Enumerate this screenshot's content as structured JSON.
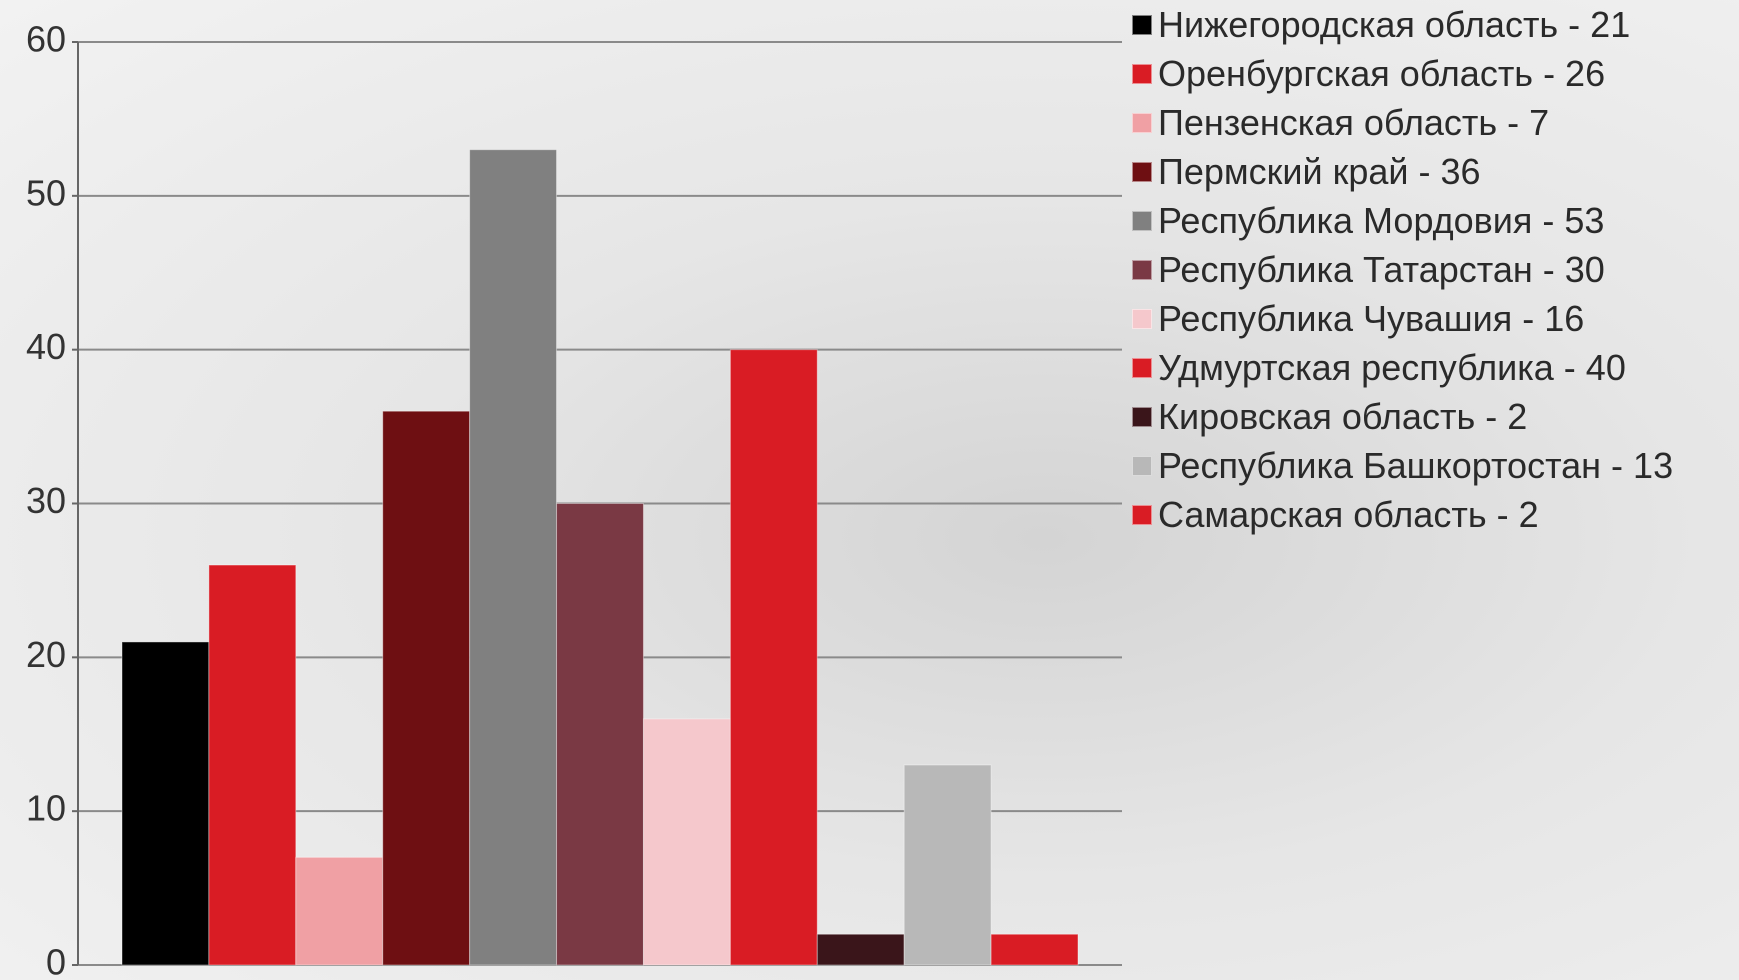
{
  "chart_data": {
    "type": "bar",
    "categories": [
      null
    ],
    "series": [
      {
        "name": "Нижегородская область - 21",
        "color": "#000000",
        "values": [
          21
        ]
      },
      {
        "name": "Оренбургская область - 26",
        "color": "#d91c24",
        "values": [
          26
        ]
      },
      {
        "name": "Пензенская область - 7",
        "color": "#f0a0a4",
        "values": [
          7
        ]
      },
      {
        "name": "Пермский край - 36",
        "color": "#6e0f12",
        "values": [
          36
        ]
      },
      {
        "name": "Республика Мордовия - 53",
        "color": "#808080",
        "values": [
          53
        ]
      },
      {
        "name": "Республика Татарстан - 30",
        "color": "#7a3944",
        "values": [
          30
        ]
      },
      {
        "name": "Республика Чувашия - 16",
        "color": "#f5c8cc",
        "values": [
          16
        ]
      },
      {
        "name": "Удмуртская республика - 40",
        "color": "#d91c24",
        "values": [
          40
        ]
      },
      {
        "name": "Кировская область - 2",
        "color": "#3a151a",
        "values": [
          2
        ]
      },
      {
        "name": "Республика Башкортостан - 13",
        "color": "#b8b8b8",
        "values": [
          13
        ]
      },
      {
        "name": "Самарская область - 2",
        "color": "#d91c24",
        "values": [
          2
        ]
      }
    ],
    "ylim": [
      0,
      60
    ],
    "yticks": [
      0,
      10,
      20,
      30,
      40,
      50,
      60
    ],
    "grid": true,
    "legend": "right"
  }
}
